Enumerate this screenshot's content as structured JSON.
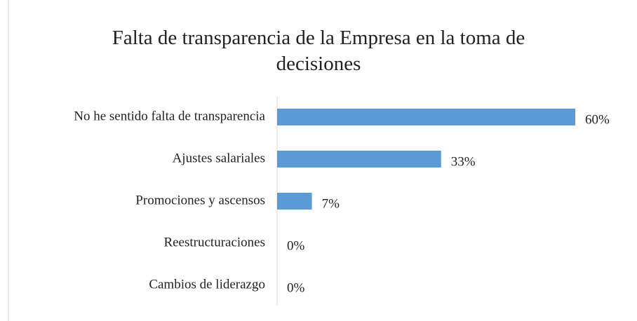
{
  "chart_data": {
    "type": "bar",
    "orientation": "horizontal",
    "title": "Falta de transparencia de la Empresa en la toma de decisiones",
    "categories": [
      "No he sentido falta de transparencia",
      "Ajustes salariales",
      "Promociones y ascensos",
      "Reestructuraciones",
      "Cambios de liderazgo"
    ],
    "values": [
      60,
      33,
      7,
      0,
      0
    ],
    "value_labels": [
      "60%",
      "33%",
      "7%",
      "0%",
      "0%"
    ],
    "color": "#5b9bd5"
  }
}
